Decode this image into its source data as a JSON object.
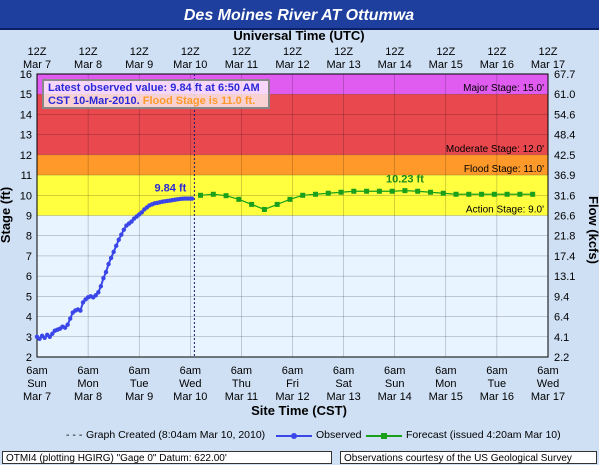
{
  "title": "Des Moines River  AT Ottumwa",
  "info": {
    "line1": "Latest observed value: 9.84 ft at 6:50 AM",
    "line2_prefix": "CST 10-Mar-2010. ",
    "line2_flood": "Flood Stage is 11.0 ft."
  },
  "colors": {
    "header_bg": "#1e3f9e",
    "major": "#e05cf0",
    "moderate": "#e8484e",
    "flood": "#ff9a2a",
    "action": "#ffff40",
    "normal": "#e8f4ff",
    "observed": "#3a46e8",
    "forecast": "#1aa01a",
    "flood_text": "#ff9a2a"
  },
  "footer": {
    "left": "OTMI4 (plotting HGIRG) \"Gage 0\" Datum: 622.00'",
    "right": "Observations courtesy of the  US Geological Survey"
  },
  "legend": {
    "created": "Graph Created (8:04am Mar 10, 2010)",
    "observed": "Observed",
    "forecast": "Forecast (issued 4:20am Mar 10)"
  },
  "chart_data": {
    "type": "line",
    "title": "Des Moines River  AT Ottumwa",
    "top_axis_title": "Universal Time (UTC)",
    "xlabel": "Site Time (CST)",
    "ylabel": "Stage (ft)",
    "y2label": "Flow (kcfs)",
    "ylim": [
      2,
      16
    ],
    "xlim": [
      "Mar 7 6am",
      "Mar 17 6am"
    ],
    "grid": true,
    "y_ticks": [
      2,
      3,
      4,
      5,
      6,
      7,
      8,
      9,
      10,
      11,
      12,
      13,
      14,
      15,
      16
    ],
    "y2_ticks": [
      "2.2",
      "4.1",
      "6.4",
      "9.4",
      "13.1",
      "17.4",
      "21.8",
      "26.6",
      "31.6",
      "36.9",
      "42.5",
      "48.4",
      "54.6",
      "61.0",
      "67.7"
    ],
    "bottom_ticks": [
      {
        "top": "6am",
        "mid": "Sun",
        "bot": "Mar 7"
      },
      {
        "top": "6am",
        "mid": "Mon",
        "bot": "Mar 8"
      },
      {
        "top": "6am",
        "mid": "Tue",
        "bot": "Mar 9"
      },
      {
        "top": "6am",
        "mid": "Wed",
        "bot": "Mar 10"
      },
      {
        "top": "6am",
        "mid": "Thu",
        "bot": "Mar 11"
      },
      {
        "top": "6am",
        "mid": "Fri",
        "bot": "Mar 12"
      },
      {
        "top": "6am",
        "mid": "Sat",
        "bot": "Mar 13"
      },
      {
        "top": "6am",
        "mid": "Sun",
        "bot": "Mar 14"
      },
      {
        "top": "6am",
        "mid": "Mon",
        "bot": "Mar 15"
      },
      {
        "top": "6am",
        "mid": "Tue",
        "bot": "Mar 16"
      },
      {
        "top": "6am",
        "mid": "Wed",
        "bot": "Mar 17"
      }
    ],
    "top_ticks": [
      {
        "top": "12Z",
        "bot": "Mar 7"
      },
      {
        "top": "12Z",
        "bot": "Mar 8"
      },
      {
        "top": "12Z",
        "bot": "Mar 9"
      },
      {
        "top": "12Z",
        "bot": "Mar 10"
      },
      {
        "top": "12Z",
        "bot": "Mar 11"
      },
      {
        "top": "12Z",
        "bot": "Mar 12"
      },
      {
        "top": "12Z",
        "bot": "Mar 13"
      },
      {
        "top": "12Z",
        "bot": "Mar 14"
      },
      {
        "top": "12Z",
        "bot": "Mar 15"
      },
      {
        "top": "12Z",
        "bot": "Mar 16"
      },
      {
        "top": "12Z",
        "bot": "Mar 17"
      }
    ],
    "stages": [
      {
        "name": "Major Stage: 15.0'",
        "from": 15,
        "to": 16,
        "color_key": "major"
      },
      {
        "name": "Moderate Stage: 12.0'",
        "from": 12,
        "to": 15,
        "color_key": "moderate"
      },
      {
        "name": "Flood Stage: 11.0'",
        "from": 11,
        "to": 12,
        "color_key": "flood"
      },
      {
        "name": "Action Stage: 9.0'",
        "from": 9,
        "to": 11,
        "color_key": "action"
      }
    ],
    "created_day": 3.08,
    "observed_label": "9.84 ft",
    "forecast_peak_label": "10.23 ft",
    "observed": {
      "name": "Observed",
      "x_days": [
        0,
        0.05,
        0.1,
        0.15,
        0.2,
        0.25,
        0.3,
        0.35,
        0.4,
        0.45,
        0.5,
        0.55,
        0.6,
        0.65,
        0.7,
        0.75,
        0.8,
        0.85,
        0.9,
        0.95,
        1.0,
        1.05,
        1.1,
        1.15,
        1.2,
        1.25,
        1.3,
        1.35,
        1.4,
        1.45,
        1.5,
        1.55,
        1.6,
        1.65,
        1.7,
        1.75,
        1.8,
        1.85,
        1.9,
        1.95,
        2.0,
        2.05,
        2.1,
        2.15,
        2.2,
        2.25,
        2.3,
        2.35,
        2.4,
        2.45,
        2.5,
        2.55,
        2.6,
        2.65,
        2.7,
        2.75,
        2.8,
        2.85,
        2.9,
        2.95,
        3.0,
        3.035
      ],
      "values": [
        3.0,
        2.9,
        3.05,
        2.95,
        3.1,
        3.0,
        3.15,
        3.3,
        3.35,
        3.4,
        3.5,
        3.45,
        3.6,
        3.9,
        4.2,
        4.3,
        4.35,
        4.3,
        4.7,
        4.85,
        4.95,
        5.0,
        4.95,
        5.05,
        5.2,
        5.5,
        5.9,
        6.2,
        6.6,
        6.9,
        7.2,
        7.5,
        7.8,
        8.05,
        8.3,
        8.5,
        8.6,
        8.7,
        8.85,
        8.95,
        9.05,
        9.15,
        9.3,
        9.4,
        9.5,
        9.55,
        9.6,
        9.62,
        9.65,
        9.68,
        9.7,
        9.72,
        9.74,
        9.76,
        9.78,
        9.8,
        9.82,
        9.83,
        9.84,
        9.84,
        9.84,
        9.84
      ]
    },
    "forecast": {
      "name": "Forecast (issued 4:20am Mar 10)",
      "x_days": [
        3.2,
        3.45,
        3.7,
        3.95,
        4.2,
        4.45,
        4.7,
        4.95,
        5.2,
        5.45,
        5.7,
        5.95,
        6.2,
        6.45,
        6.7,
        6.95,
        7.2,
        7.45,
        7.7,
        7.95,
        8.2,
        8.45,
        8.7,
        8.95,
        9.2,
        9.45,
        9.7
      ],
      "values": [
        10.0,
        10.05,
        9.98,
        9.8,
        9.55,
        9.3,
        9.55,
        9.8,
        10.0,
        10.05,
        10.1,
        10.15,
        10.2,
        10.2,
        10.2,
        10.2,
        10.23,
        10.2,
        10.15,
        10.1,
        10.05,
        10.05,
        10.05,
        10.05,
        10.05,
        10.05,
        10.05
      ]
    }
  }
}
